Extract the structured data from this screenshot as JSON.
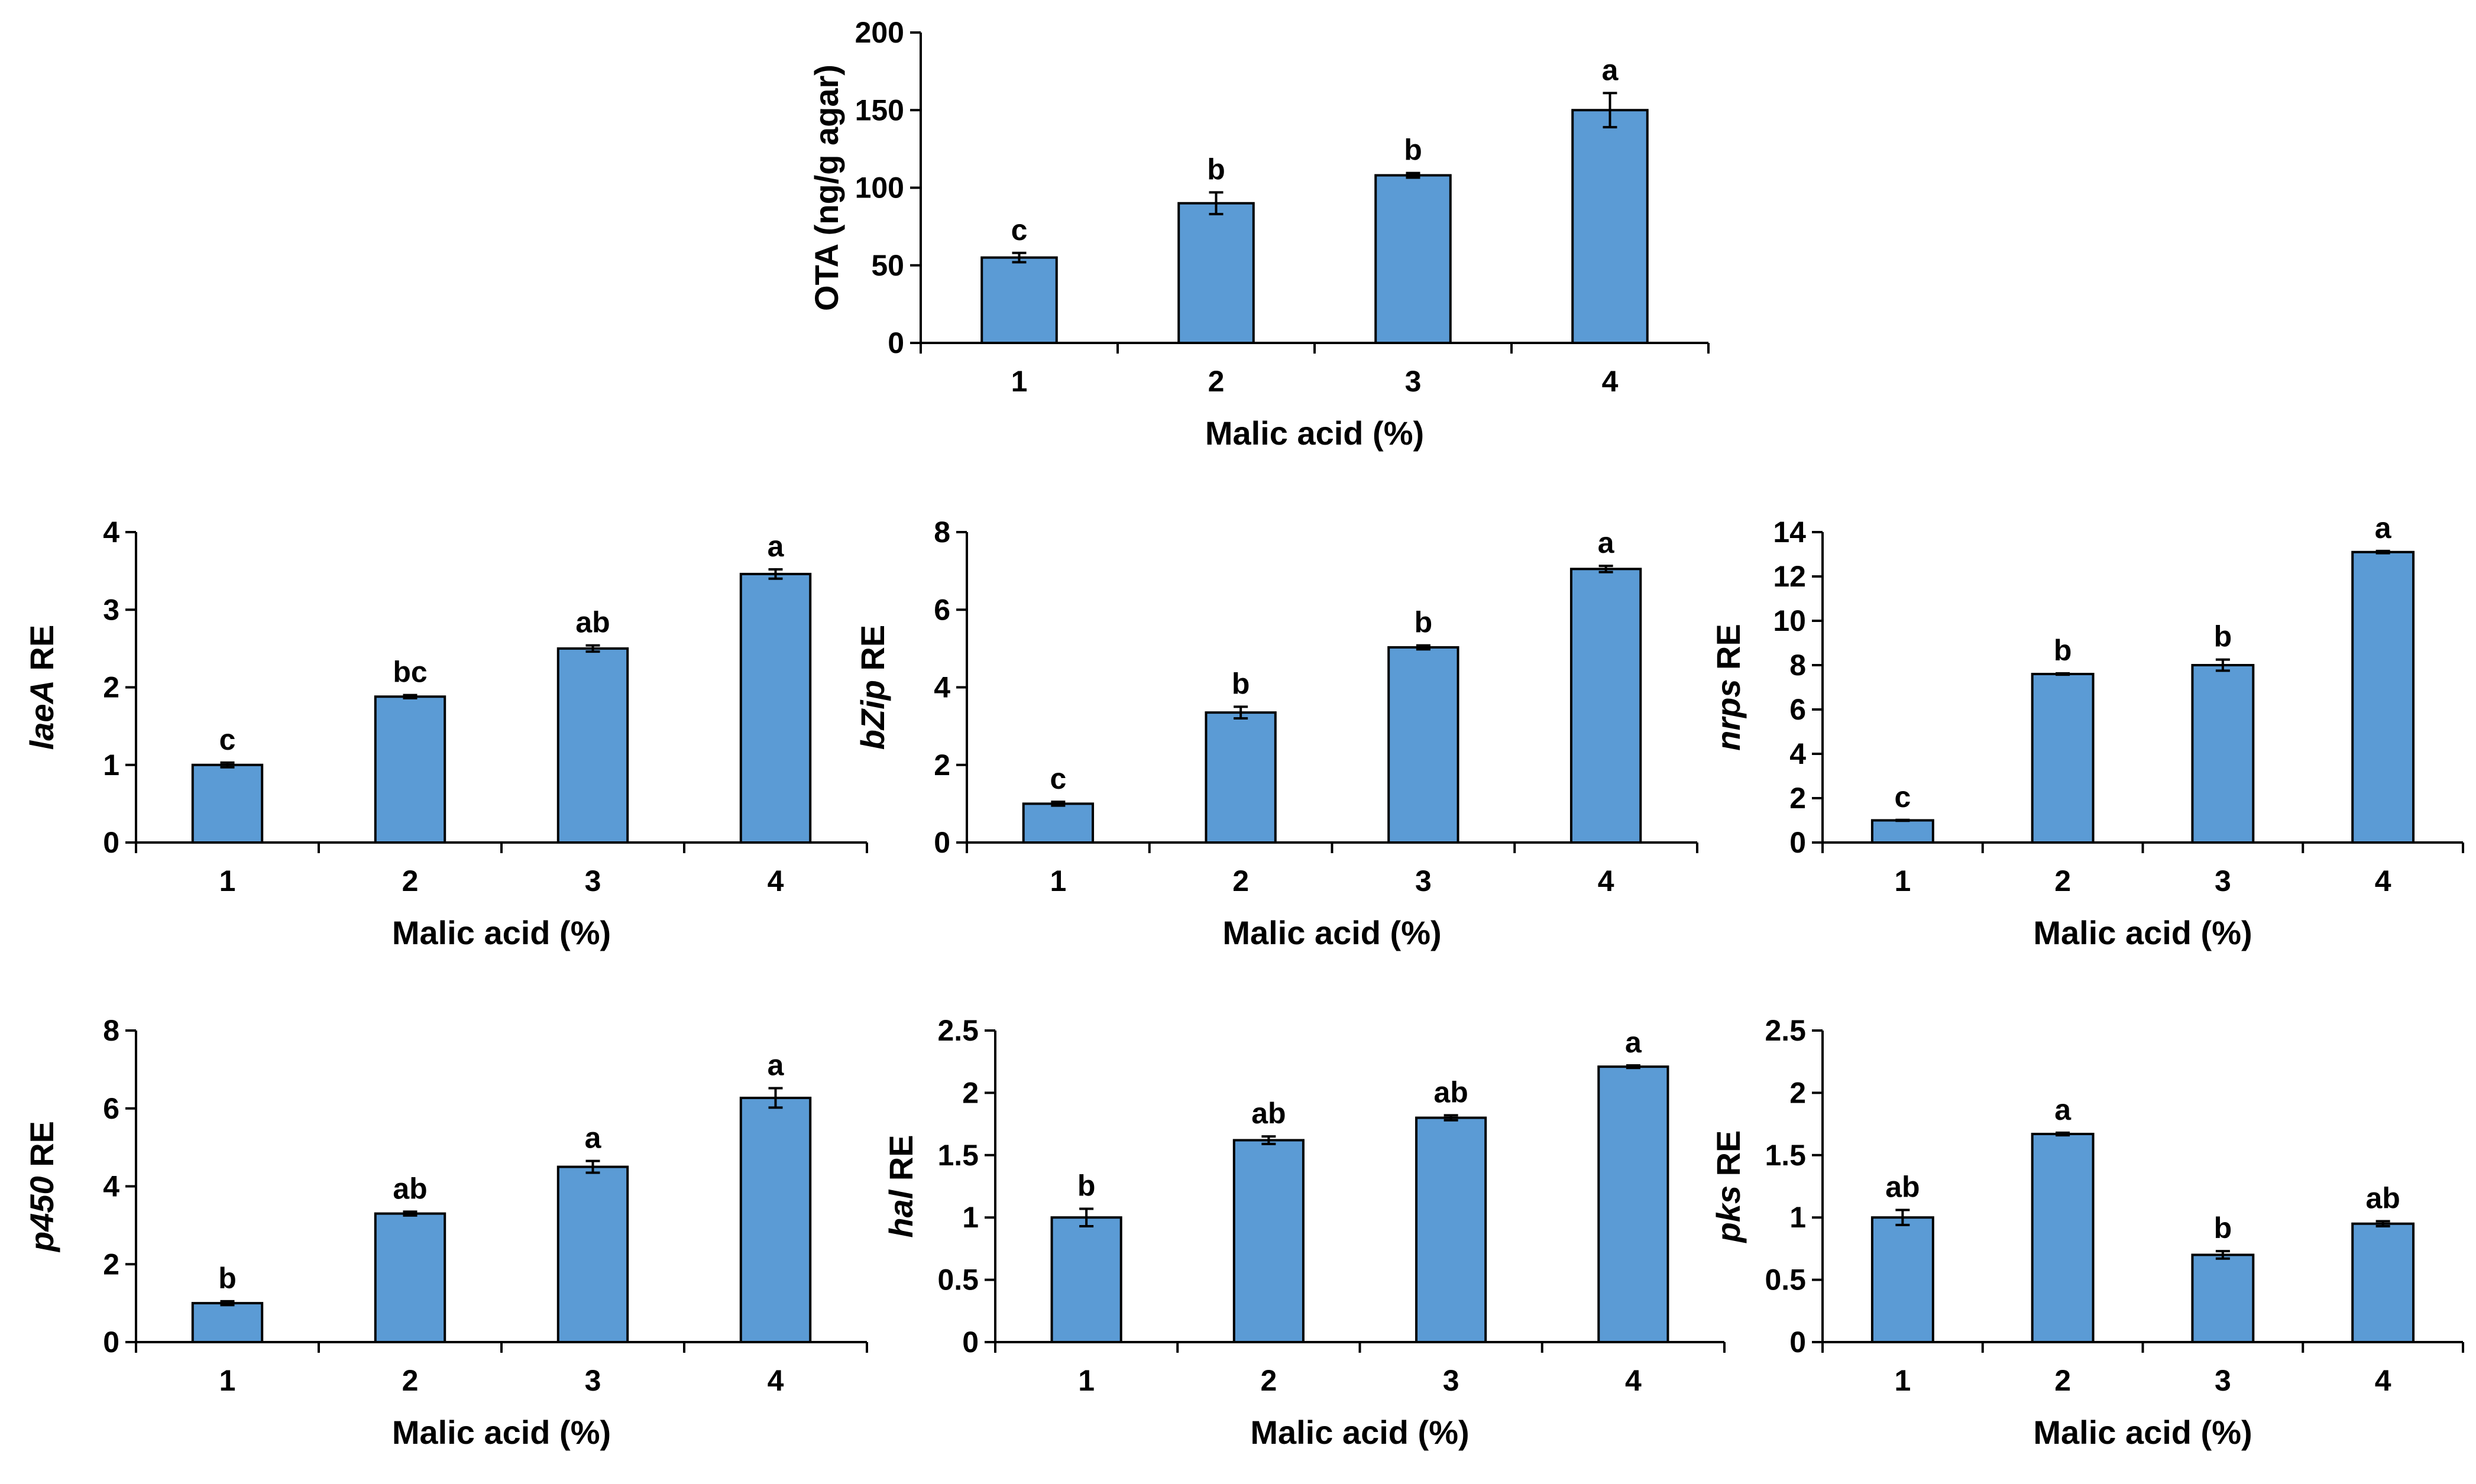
{
  "colors": {
    "bar_fill": "#5B9BD5",
    "bar_stroke": "#000000",
    "axis": "#000000",
    "text": "#000000"
  },
  "chart_data": [
    {
      "id": "ota",
      "type": "bar",
      "title": "",
      "xlabel": "Malic acid (%)",
      "ylabel": [
        {
          "text": "OTA (ng/g agar)",
          "italic": false
        }
      ],
      "categories": [
        "1",
        "2",
        "3",
        "4"
      ],
      "values": [
        55,
        90,
        108,
        150
      ],
      "errors": [
        3,
        7,
        1.5,
        11
      ],
      "significance": [
        "c",
        "b",
        "b",
        "a"
      ],
      "ylim": [
        0,
        200
      ],
      "yticks": [
        0,
        50,
        100,
        150,
        200
      ],
      "ytick_labels": [
        "0",
        "50",
        "100",
        "150",
        "200"
      ]
    },
    {
      "id": "laeA",
      "type": "bar",
      "title": "",
      "xlabel": "Malic acid (%)",
      "ylabel": [
        {
          "text": "laeA",
          "italic": true
        },
        {
          "text": " RE",
          "italic": false
        }
      ],
      "categories": [
        "1",
        "2",
        "3",
        "4"
      ],
      "values": [
        1.0,
        1.88,
        2.5,
        3.46
      ],
      "errors": [
        0.03,
        0.02,
        0.04,
        0.06
      ],
      "significance": [
        "c",
        "bc",
        "ab",
        "a"
      ],
      "ylim": [
        0,
        4
      ],
      "yticks": [
        0,
        1,
        2,
        3,
        4
      ],
      "ytick_labels": [
        "0",
        "1",
        "2",
        "3",
        "4"
      ]
    },
    {
      "id": "bZip",
      "type": "bar",
      "title": "",
      "xlabel": "Malic acid (%)",
      "ylabel": [
        {
          "text": "bZip",
          "italic": true
        },
        {
          "text": " RE",
          "italic": false
        }
      ],
      "categories": [
        "1",
        "2",
        "3",
        "4"
      ],
      "values": [
        1.0,
        3.35,
        5.03,
        7.05
      ],
      "errors": [
        0.05,
        0.15,
        0.05,
        0.08
      ],
      "significance": [
        "c",
        "b",
        "b",
        "a"
      ],
      "ylim": [
        0,
        8
      ],
      "yticks": [
        0,
        2,
        4,
        6,
        8
      ],
      "ytick_labels": [
        "0",
        "2",
        "4",
        "6",
        "8"
      ]
    },
    {
      "id": "nrps",
      "type": "bar",
      "title": "",
      "xlabel": "Malic acid (%)",
      "ylabel": [
        {
          "text": "nrps",
          "italic": true
        },
        {
          "text": " RE",
          "italic": false
        }
      ],
      "categories": [
        "1",
        "2",
        "3",
        "4"
      ],
      "values": [
        1.0,
        7.6,
        8.0,
        13.1
      ],
      "errors": [
        0.02,
        0.03,
        0.25,
        0.05
      ],
      "significance": [
        "c",
        "b",
        "b",
        "a"
      ],
      "ylim": [
        0,
        14
      ],
      "yticks": [
        0,
        2,
        4,
        6,
        8,
        10,
        12,
        14
      ],
      "ytick_labels": [
        "0",
        "2",
        "4",
        "6",
        "8",
        "10",
        "12",
        "14"
      ]
    },
    {
      "id": "p450",
      "type": "bar",
      "title": "",
      "xlabel": "Malic acid (%)",
      "ylabel": [
        {
          "text": "p450",
          "italic": true
        },
        {
          "text": " RE",
          "italic": false
        }
      ],
      "categories": [
        "1",
        "2",
        "3",
        "4"
      ],
      "values": [
        1.0,
        3.3,
        4.5,
        6.27
      ],
      "errors": [
        0.05,
        0.05,
        0.15,
        0.25
      ],
      "significance": [
        "b",
        "ab",
        "a",
        "a"
      ],
      "ylim": [
        0,
        8
      ],
      "yticks": [
        0,
        2,
        4,
        6,
        8
      ],
      "ytick_labels": [
        "0",
        "2",
        "4",
        "6",
        "8"
      ]
    },
    {
      "id": "hal",
      "type": "bar",
      "title": "",
      "xlabel": "Malic acid (%)",
      "ylabel": [
        {
          "text": "hal",
          "italic": true
        },
        {
          "text": " RE",
          "italic": false
        }
      ],
      "categories": [
        "1",
        "2",
        "3",
        "4"
      ],
      "values": [
        1.0,
        1.62,
        1.8,
        2.21
      ],
      "errors": [
        0.07,
        0.03,
        0.02,
        0.01
      ],
      "significance": [
        "b",
        "ab",
        "ab",
        "a"
      ],
      "ylim": [
        0,
        2.5
      ],
      "yticks": [
        0,
        0.5,
        1,
        1.5,
        2,
        2.5
      ],
      "ytick_labels": [
        "0",
        "0.5",
        "1",
        "1.5",
        "2",
        "2.5"
      ]
    },
    {
      "id": "pks",
      "type": "bar",
      "title": "",
      "xlabel": "Malic acid (%)",
      "ylabel": [
        {
          "text": "pks",
          "italic": true
        },
        {
          "text": " RE",
          "italic": false
        }
      ],
      "categories": [
        "1",
        "2",
        "3",
        "4"
      ],
      "values": [
        1.0,
        1.67,
        0.7,
        0.95
      ],
      "errors": [
        0.06,
        0.01,
        0.03,
        0.02
      ],
      "significance": [
        "ab",
        "a",
        "b",
        "ab"
      ],
      "ylim": [
        0,
        2.5
      ],
      "yticks": [
        0,
        0.5,
        1,
        1.5,
        2,
        2.5
      ],
      "ytick_labels": [
        "0",
        "0.5",
        "1",
        "1.5",
        "2",
        "2.5"
      ]
    }
  ]
}
